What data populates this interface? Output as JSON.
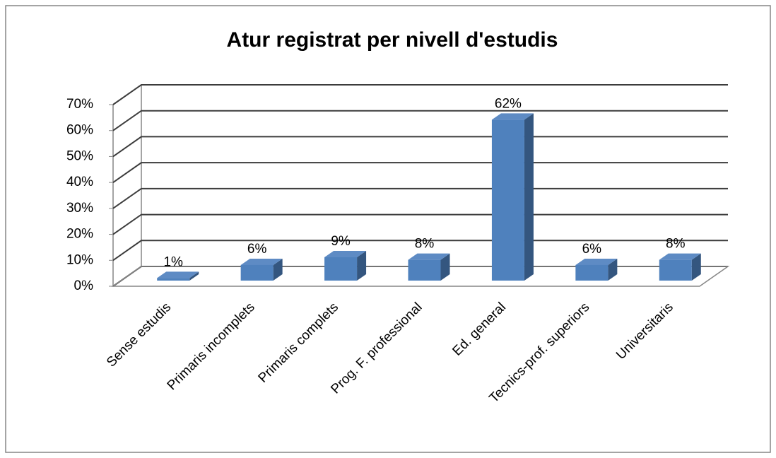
{
  "chart_data": {
    "type": "bar3d",
    "title": "Atur registrat per nivell d'estudis",
    "categories": [
      "Sense estudis",
      "Primaris incomplets",
      "Primaris complets",
      "Prog. F. professional",
      "Ed. general",
      "Tecnics-prof. superiors",
      "Universitaris"
    ],
    "values": [
      1,
      6,
      9,
      8,
      62,
      6,
      8
    ],
    "value_labels": [
      "1%",
      "6%",
      "9%",
      "8%",
      "62%",
      "6%",
      "8%"
    ],
    "color": "#4f81bd",
    "ylim": [
      0,
      70
    ],
    "yticks": [
      {
        "value": 0,
        "label": "0%"
      },
      {
        "value": 10,
        "label": "10%"
      },
      {
        "value": 20,
        "label": "20%"
      },
      {
        "value": 30,
        "label": "30%"
      },
      {
        "value": 40,
        "label": "40%"
      },
      {
        "value": 50,
        "label": "50%"
      },
      {
        "value": 60,
        "label": "60%"
      },
      {
        "value": 70,
        "label": "70%"
      }
    ],
    "grid": true
  }
}
